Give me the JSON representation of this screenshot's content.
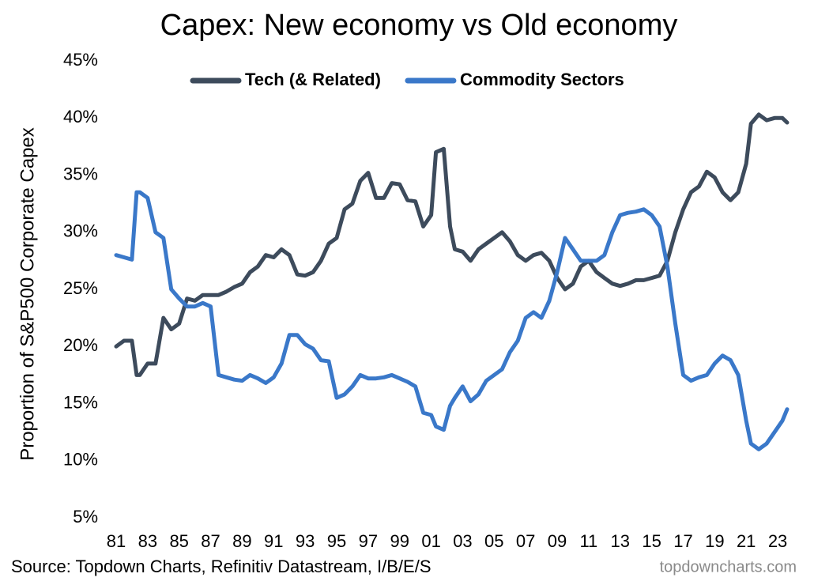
{
  "chart_data": {
    "type": "line",
    "title": "Capex: New economy vs Old economy",
    "y_label": "Proportion of S&P500 Corporate Capex",
    "source": "Source: Topdown Charts, Refinitiv Datastream, I/B/E/S",
    "watermark": "topdowncharts.com",
    "legend": "top",
    "grid": false,
    "x": [
      1981,
      1981.5,
      1982,
      1982.3,
      1982.5,
      1983,
      1983.5,
      1984,
      1984.5,
      1985,
      1985.5,
      1986,
      1986.5,
      1987,
      1987.5,
      1988,
      1988.5,
      1989,
      1989.5,
      1990,
      1990.5,
      1991,
      1991.5,
      1992,
      1992.5,
      1993,
      1993.5,
      1994,
      1994.5,
      1995,
      1995.5,
      1996,
      1996.5,
      1997,
      1997.5,
      1998,
      1998.5,
      1999,
      1999.5,
      2000,
      2000.5,
      2001,
      2001.3,
      2001.8,
      2002.2,
      2002.5,
      2003,
      2003.5,
      2004,
      2004.5,
      2005,
      2005.5,
      2006,
      2006.5,
      2007,
      2007.5,
      2008,
      2008.5,
      2009,
      2009.5,
      2010,
      2010.5,
      2011,
      2011.5,
      2012,
      2012.5,
      2013,
      2013.5,
      2014,
      2014.5,
      2015,
      2015.5,
      2016,
      2016.5,
      2017,
      2017.5,
      2018,
      2018.5,
      2019,
      2019.5,
      2020,
      2020.5,
      2021,
      2021.3,
      2021.8,
      2022.3,
      2022.8,
      2023.3,
      2023.6
    ],
    "series": [
      {
        "name": "Tech (& Related)",
        "color": "#3d4b5c",
        "values": [
          20,
          20.5,
          20.5,
          17.5,
          17.5,
          18.5,
          18.5,
          22.5,
          21.5,
          22,
          24.2,
          24,
          24.5,
          24.5,
          24.5,
          24.8,
          25.2,
          25.5,
          26.5,
          27,
          28,
          27.8,
          28.5,
          28,
          26.3,
          26.2,
          26.5,
          27.5,
          29,
          29.5,
          32,
          32.5,
          34.5,
          35.2,
          33,
          33,
          34.3,
          34.2,
          32.8,
          32.7,
          30.5,
          31.5,
          37,
          37.3,
          30.5,
          28.5,
          28.3,
          27.5,
          28.5,
          29,
          29.5,
          30,
          29.2,
          28,
          27.5,
          28,
          28.2,
          27.5,
          26,
          25,
          25.5,
          27,
          27.5,
          26.5,
          26,
          25.5,
          25.3,
          25.5,
          25.8,
          25.8,
          26,
          26.2,
          27.5,
          30,
          32,
          33.5,
          34,
          35.3,
          34.8,
          33.5,
          32.8,
          33.5,
          36,
          39.5,
          40.3,
          39.8,
          40,
          40,
          39.6
        ]
      },
      {
        "name": "Commodity Sectors",
        "color": "#3a78c9",
        "values": [
          28,
          27.8,
          27.6,
          33.5,
          33.5,
          33,
          30,
          29.5,
          25,
          24.2,
          23.5,
          23.5,
          23.8,
          23.5,
          17.5,
          17.3,
          17.1,
          17,
          17.5,
          17.2,
          16.8,
          17.3,
          18.5,
          21,
          21,
          20.2,
          19.8,
          18.8,
          18.7,
          15.5,
          15.8,
          16.5,
          17.5,
          17.2,
          17.2,
          17.3,
          17.5,
          17.2,
          16.9,
          16.5,
          14.2,
          14,
          13,
          12.7,
          14.8,
          15.5,
          16.5,
          15.2,
          15.8,
          17,
          17.5,
          18,
          19.5,
          20.5,
          22.5,
          23,
          22.5,
          24,
          26.5,
          29.5,
          28.5,
          27.5,
          27.5,
          27.5,
          28,
          30,
          31.5,
          31.7,
          31.8,
          32,
          31.5,
          30.5,
          27,
          22,
          17.5,
          17,
          17.3,
          17.5,
          18.5,
          19.2,
          18.8,
          17.5,
          13.5,
          11.5,
          11,
          11.5,
          12.5,
          13.5,
          14.5
        ]
      }
    ],
    "xlim": [
      1980.5,
      2023.8
    ],
    "xticks": [
      {
        "value": 1981,
        "label": "81"
      },
      {
        "value": 1983,
        "label": "83"
      },
      {
        "value": 1985,
        "label": "85"
      },
      {
        "value": 1987,
        "label": "87"
      },
      {
        "value": 1989,
        "label": "89"
      },
      {
        "value": 1991,
        "label": "91"
      },
      {
        "value": 1993,
        "label": "93"
      },
      {
        "value": 1995,
        "label": "95"
      },
      {
        "value": 1997,
        "label": "97"
      },
      {
        "value": 1999,
        "label": "99"
      },
      {
        "value": 2001,
        "label": "01"
      },
      {
        "value": 2003,
        "label": "03"
      },
      {
        "value": 2005,
        "label": "05"
      },
      {
        "value": 2007,
        "label": "07"
      },
      {
        "value": 2009,
        "label": "09"
      },
      {
        "value": 2011,
        "label": "11"
      },
      {
        "value": 2013,
        "label": "13"
      },
      {
        "value": 2015,
        "label": "15"
      },
      {
        "value": 2017,
        "label": "17"
      },
      {
        "value": 2019,
        "label": "19"
      },
      {
        "value": 2021,
        "label": "21"
      },
      {
        "value": 2023,
        "label": "23"
      }
    ],
    "ylim": [
      5,
      45
    ],
    "yticks": [
      {
        "value": 5,
        "label": "5%"
      },
      {
        "value": 10,
        "label": "10%"
      },
      {
        "value": 15,
        "label": "15%"
      },
      {
        "value": 20,
        "label": "20%"
      },
      {
        "value": 25,
        "label": "25%"
      },
      {
        "value": 30,
        "label": "30%"
      },
      {
        "value": 35,
        "label": "35%"
      },
      {
        "value": 40,
        "label": "40%"
      },
      {
        "value": 45,
        "label": "45%"
      }
    ]
  }
}
